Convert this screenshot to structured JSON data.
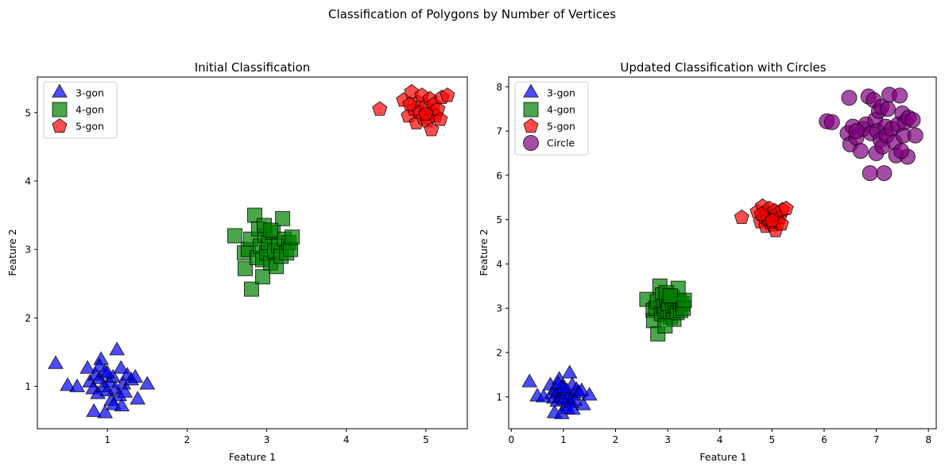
{
  "figure": {
    "suptitle": "Classification of Polygons by Number of Vertices"
  },
  "colors": {
    "3-gon": "#0000ff",
    "4-gon": "#008000",
    "5-gon": "#ff0000",
    "Circle": "#800080"
  },
  "chart_data": [
    {
      "type": "scatter",
      "title": "Initial Classification",
      "xlabel": "Feature 1",
      "ylabel": "Feature 2",
      "xlim": [
        0.12,
        5.52
      ],
      "ylim": [
        0.38,
        5.52
      ],
      "xticks": [
        1,
        2,
        3,
        4,
        5
      ],
      "yticks": [
        1,
        2,
        3,
        4,
        5
      ],
      "grid": false,
      "legend_position": "upper-left",
      "series": [
        {
          "name": "3-gon",
          "marker": "triangle",
          "color": "#0000ff",
          "points": [
            [
              0.35,
              1.32
            ],
            [
              0.5,
              1.0
            ],
            [
              0.62,
              0.98
            ],
            [
              0.75,
              1.25
            ],
            [
              0.78,
              1.05
            ],
            [
              0.82,
              0.95
            ],
            [
              0.85,
              1.15
            ],
            [
              0.88,
              0.88
            ],
            [
              0.9,
              1.1
            ],
            [
              0.92,
              1.38
            ],
            [
              0.95,
              0.98
            ],
            [
              0.97,
              1.2
            ],
            [
              1.0,
              0.92
            ],
            [
              1.02,
              1.05
            ],
            [
              1.05,
              0.78
            ],
            [
              1.07,
              1.12
            ],
            [
              1.1,
              0.95
            ],
            [
              1.12,
              1.52
            ],
            [
              1.15,
              0.85
            ],
            [
              1.17,
              1.25
            ],
            [
              1.2,
              1.02
            ],
            [
              1.22,
              0.9
            ],
            [
              1.25,
              1.15
            ],
            [
              1.3,
              1.08
            ],
            [
              1.35,
              1.12
            ],
            [
              1.38,
              0.8
            ],
            [
              1.5,
              1.02
            ],
            [
              0.83,
              0.62
            ],
            [
              0.97,
              0.6
            ],
            [
              1.08,
              0.72
            ],
            [
              0.9,
              1.28
            ],
            [
              1.0,
              1.18
            ],
            [
              1.18,
              0.7
            ]
          ]
        },
        {
          "name": "4-gon",
          "marker": "square",
          "color": "#008000",
          "points": [
            [
              2.6,
              3.2
            ],
            [
              2.72,
              2.95
            ],
            [
              2.73,
              2.72
            ],
            [
              2.77,
              3.0
            ],
            [
              2.8,
              3.15
            ],
            [
              2.81,
              2.42
            ],
            [
              2.85,
              3.5
            ],
            [
              2.88,
              2.88
            ],
            [
              2.9,
              3.3
            ],
            [
              2.92,
              3.05
            ],
            [
              2.95,
              2.85
            ],
            [
              2.98,
              3.2
            ],
            [
              3.0,
              2.95
            ],
            [
              3.02,
              3.1
            ],
            [
              3.05,
              2.8
            ],
            [
              3.08,
              3.25
            ],
            [
              3.1,
              2.98
            ],
            [
              3.12,
              2.75
            ],
            [
              3.15,
              3.05
            ],
            [
              3.18,
              2.9
            ],
            [
              3.2,
              3.45
            ],
            [
              3.22,
              3.15
            ],
            [
              3.25,
              2.95
            ],
            [
              3.28,
              3.1
            ],
            [
              3.3,
              3.0
            ],
            [
              3.32,
              3.18
            ],
            [
              2.97,
              3.35
            ],
            [
              3.05,
              3.28
            ],
            [
              2.95,
              2.6
            ]
          ]
        },
        {
          "name": "5-gon",
          "marker": "pentagon",
          "color": "#ff0000",
          "points": [
            [
              4.42,
              5.05
            ],
            [
              4.72,
              5.18
            ],
            [
              4.78,
              4.95
            ],
            [
              4.82,
              5.3
            ],
            [
              4.85,
              5.05
            ],
            [
              4.88,
              4.85
            ],
            [
              4.9,
              5.15
            ],
            [
              4.92,
              5.0
            ],
            [
              4.95,
              5.25
            ],
            [
              4.97,
              4.92
            ],
            [
              5.0,
              5.1
            ],
            [
              5.02,
              4.88
            ],
            [
              5.05,
              5.2
            ],
            [
              5.07,
              4.75
            ],
            [
              5.08,
              5.0
            ],
            [
              5.1,
              5.12
            ],
            [
              5.12,
              4.95
            ],
            [
              5.15,
              5.05
            ],
            [
              5.18,
              4.9
            ],
            [
              5.2,
              5.22
            ],
            [
              5.27,
              5.25
            ],
            [
              4.8,
              5.12
            ],
            [
              5.0,
              4.98
            ]
          ]
        }
      ]
    },
    {
      "type": "scatter",
      "title": "Updated Classification with Circles",
      "xlabel": "Feature 1",
      "ylabel": "Feature 2",
      "xlim": [
        -0.05,
        8.15
      ],
      "ylim": [
        0.28,
        8.22
      ],
      "xticks": [
        0,
        1,
        2,
        3,
        4,
        5,
        6,
        7,
        8
      ],
      "yticks": [
        1,
        2,
        3,
        4,
        5,
        6,
        7,
        8
      ],
      "grid": false,
      "legend_position": "upper-left",
      "series": [
        {
          "name": "3-gon",
          "marker": "triangle",
          "color": "#0000ff",
          "points": [
            [
              0.35,
              1.32
            ],
            [
              0.5,
              1.0
            ],
            [
              0.62,
              0.98
            ],
            [
              0.75,
              1.25
            ],
            [
              0.78,
              1.05
            ],
            [
              0.82,
              0.95
            ],
            [
              0.85,
              1.15
            ],
            [
              0.88,
              0.88
            ],
            [
              0.9,
              1.1
            ],
            [
              0.92,
              1.38
            ],
            [
              0.95,
              0.98
            ],
            [
              0.97,
              1.2
            ],
            [
              1.0,
              0.92
            ],
            [
              1.02,
              1.05
            ],
            [
              1.05,
              0.78
            ],
            [
              1.07,
              1.12
            ],
            [
              1.1,
              0.95
            ],
            [
              1.12,
              1.52
            ],
            [
              1.15,
              0.85
            ],
            [
              1.17,
              1.25
            ],
            [
              1.2,
              1.02
            ],
            [
              1.22,
              0.9
            ],
            [
              1.25,
              1.15
            ],
            [
              1.3,
              1.08
            ],
            [
              1.35,
              1.12
            ],
            [
              1.38,
              0.8
            ],
            [
              1.5,
              1.02
            ],
            [
              0.83,
              0.62
            ],
            [
              0.97,
              0.6
            ],
            [
              1.08,
              0.72
            ],
            [
              0.9,
              1.28
            ],
            [
              1.0,
              1.18
            ],
            [
              1.18,
              0.7
            ]
          ]
        },
        {
          "name": "4-gon",
          "marker": "square",
          "color": "#008000",
          "points": [
            [
              2.6,
              3.2
            ],
            [
              2.72,
              2.95
            ],
            [
              2.73,
              2.72
            ],
            [
              2.77,
              3.0
            ],
            [
              2.8,
              3.15
            ],
            [
              2.81,
              2.42
            ],
            [
              2.85,
              3.5
            ],
            [
              2.88,
              2.88
            ],
            [
              2.9,
              3.3
            ],
            [
              2.92,
              3.05
            ],
            [
              2.95,
              2.85
            ],
            [
              2.98,
              3.2
            ],
            [
              3.0,
              2.95
            ],
            [
              3.02,
              3.1
            ],
            [
              3.05,
              2.8
            ],
            [
              3.08,
              3.25
            ],
            [
              3.1,
              2.98
            ],
            [
              3.12,
              2.75
            ],
            [
              3.15,
              3.05
            ],
            [
              3.18,
              2.9
            ],
            [
              3.2,
              3.45
            ],
            [
              3.22,
              3.15
            ],
            [
              3.25,
              2.95
            ],
            [
              3.28,
              3.1
            ],
            [
              3.3,
              3.0
            ],
            [
              3.32,
              3.18
            ],
            [
              2.97,
              3.35
            ],
            [
              3.05,
              3.28
            ],
            [
              2.95,
              2.6
            ]
          ]
        },
        {
          "name": "5-gon",
          "marker": "pentagon",
          "color": "#ff0000",
          "points": [
            [
              4.42,
              5.05
            ],
            [
              4.72,
              5.18
            ],
            [
              4.78,
              4.95
            ],
            [
              4.82,
              5.3
            ],
            [
              4.85,
              5.05
            ],
            [
              4.88,
              4.85
            ],
            [
              4.9,
              5.15
            ],
            [
              4.92,
              5.0
            ],
            [
              4.95,
              5.25
            ],
            [
              4.97,
              4.92
            ],
            [
              5.0,
              5.1
            ],
            [
              5.02,
              4.88
            ],
            [
              5.05,
              5.2
            ],
            [
              5.07,
              4.75
            ],
            [
              5.08,
              5.0
            ],
            [
              5.1,
              5.12
            ],
            [
              5.12,
              4.95
            ],
            [
              5.15,
              5.05
            ],
            [
              5.18,
              4.9
            ],
            [
              5.2,
              5.22
            ],
            [
              5.27,
              5.25
            ],
            [
              4.8,
              5.12
            ],
            [
              5.0,
              4.98
            ]
          ]
        },
        {
          "name": "Circle",
          "marker": "circle",
          "color": "#800080",
          "points": [
            [
              6.05,
              7.22
            ],
            [
              6.15,
              7.2
            ],
            [
              6.45,
              6.95
            ],
            [
              6.48,
              7.75
            ],
            [
              6.5,
              6.7
            ],
            [
              6.55,
              7.1
            ],
            [
              6.62,
              6.85
            ],
            [
              6.7,
              6.55
            ],
            [
              6.75,
              7.05
            ],
            [
              6.8,
              7.15
            ],
            [
              6.85,
              7.78
            ],
            [
              6.88,
              6.05
            ],
            [
              6.9,
              6.95
            ],
            [
              6.95,
              7.7
            ],
            [
              6.98,
              7.25
            ],
            [
              7.0,
              6.5
            ],
            [
              7.02,
              7.0
            ],
            [
              7.05,
              7.45
            ],
            [
              7.08,
              6.8
            ],
            [
              7.1,
              7.55
            ],
            [
              7.12,
              6.65
            ],
            [
              7.15,
              6.05
            ],
            [
              7.18,
              7.1
            ],
            [
              7.2,
              6.9
            ],
            [
              7.22,
              7.5
            ],
            [
              7.25,
              7.82
            ],
            [
              7.3,
              7.05
            ],
            [
              7.35,
              6.75
            ],
            [
              7.38,
              6.45
            ],
            [
              7.42,
              7.15
            ],
            [
              7.45,
              7.8
            ],
            [
              7.5,
              7.4
            ],
            [
              7.52,
              6.9
            ],
            [
              7.55,
              7.2
            ],
            [
              7.6,
              6.42
            ],
            [
              7.62,
              7.3
            ],
            [
              7.7,
              7.25
            ],
            [
              7.75,
              6.9
            ],
            [
              7.48,
              6.55
            ],
            [
              6.62,
              7.0
            ]
          ]
        }
      ]
    }
  ]
}
